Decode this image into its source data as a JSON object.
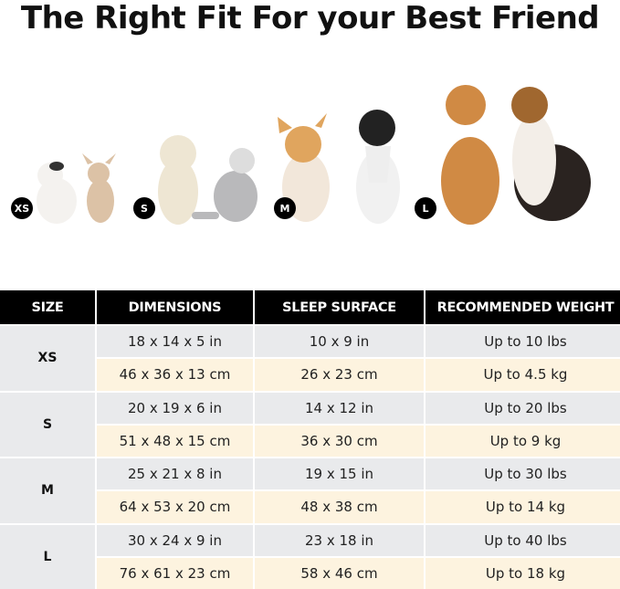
{
  "title": "The Right Fit For your Best Friend",
  "size_badges": [
    "XS",
    "S",
    "M",
    "L"
  ],
  "table": {
    "headers": [
      "SIZE",
      "DIMENSIONS",
      "SLEEP SURFACE",
      "RECOMMENDED WEIGHT"
    ],
    "groups": [
      {
        "size": "XS",
        "rows": [
          [
            "18 x 14 x 5 in",
            "10 x 9 in",
            "Up to 10 lbs"
          ],
          [
            "46 x 36 x 13 cm",
            "26 x 23 cm",
            "Up to 4.5 kg"
          ]
        ]
      },
      {
        "size": "S",
        "rows": [
          [
            "20 x 19 x 6 in",
            "14 x 12 in",
            "Up to 20 lbs"
          ],
          [
            "51 x 48 x 15 cm",
            "36 x 30 cm",
            "Up to 9 kg"
          ]
        ]
      },
      {
        "size": "M",
        "rows": [
          [
            "25 x 21 x 8 in",
            "19 x 15 in",
            "Up to 30 lbs"
          ],
          [
            "64 x 53 x 20 cm",
            "48 x 38 cm",
            "Up to 14 kg"
          ]
        ]
      },
      {
        "size": "L",
        "rows": [
          [
            "30 x 24 x 9 in",
            "23 x 18 in",
            "Up to 40 lbs"
          ],
          [
            "76 x 61 x 23 cm",
            "58 x 46 cm",
            "Up to 18 kg"
          ]
        ]
      }
    ]
  },
  "colors": {
    "header": "#000000",
    "gray_row": "#e9eaec",
    "cream_row": "#fdf3df"
  }
}
